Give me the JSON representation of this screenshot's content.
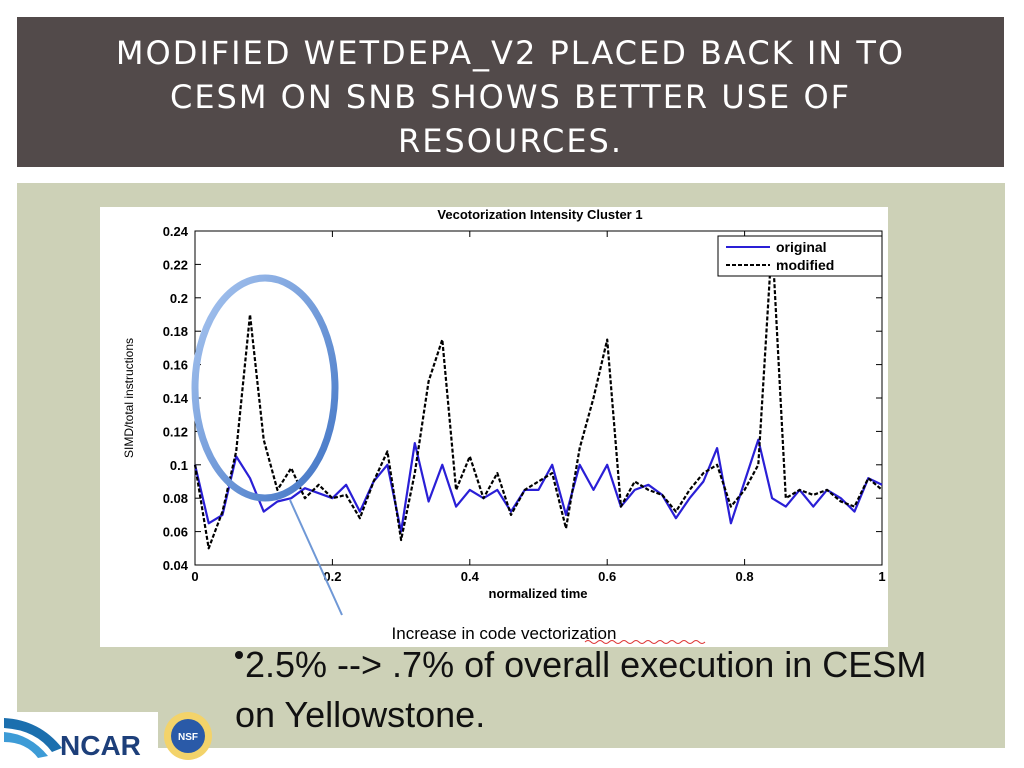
{
  "header": {
    "title": "MODIFIED WETDEPA_V2 PLACED BACK IN TO CESM ON SNB SHOWS BETTER USE OF RESOURCES."
  },
  "chart_data": {
    "type": "line",
    "title": "Vecotorization Intensity Cluster 1",
    "xlabel": "normalized time",
    "ylabel": "SIMD/total instructions",
    "x": [
      0,
      0.02,
      0.04,
      0.06,
      0.08,
      0.1,
      0.12,
      0.14,
      0.16,
      0.18,
      0.2,
      0.22,
      0.24,
      0.26,
      0.28,
      0.3,
      0.32,
      0.34,
      0.36,
      0.38,
      0.4,
      0.42,
      0.44,
      0.46,
      0.48,
      0.5,
      0.52,
      0.54,
      0.56,
      0.58,
      0.6,
      0.62,
      0.64,
      0.66,
      0.68,
      0.7,
      0.72,
      0.74,
      0.76,
      0.78,
      0.8,
      0.82,
      0.84,
      0.86,
      0.88,
      0.9,
      0.92,
      0.94,
      0.96,
      0.98,
      1
    ],
    "series": [
      {
        "name": "original",
        "color": "#2a1fd6",
        "dash": "solid",
        "values": [
          0.1,
          0.065,
          0.07,
          0.105,
          0.092,
          0.072,
          0.078,
          0.08,
          0.086,
          0.083,
          0.08,
          0.088,
          0.072,
          0.09,
          0.1,
          0.06,
          0.113,
          0.078,
          0.1,
          0.075,
          0.085,
          0.08,
          0.085,
          0.072,
          0.085,
          0.085,
          0.1,
          0.07,
          0.1,
          0.085,
          0.1,
          0.075,
          0.085,
          0.088,
          0.082,
          0.068,
          0.08,
          0.09,
          0.11,
          0.065,
          0.09,
          0.115,
          0.08,
          0.075,
          0.085,
          0.075,
          0.085,
          0.08,
          0.072,
          0.092,
          0.088
        ]
      },
      {
        "name": "modified",
        "color": "#000000",
        "dash": "dashed",
        "values": [
          0.1,
          0.05,
          0.072,
          0.108,
          0.19,
          0.115,
          0.085,
          0.098,
          0.08,
          0.088,
          0.08,
          0.082,
          0.068,
          0.09,
          0.108,
          0.055,
          0.095,
          0.15,
          0.175,
          0.085,
          0.105,
          0.08,
          0.095,
          0.07,
          0.085,
          0.09,
          0.095,
          0.062,
          0.11,
          0.14,
          0.175,
          0.075,
          0.09,
          0.085,
          0.082,
          0.072,
          0.085,
          0.095,
          0.1,
          0.075,
          0.085,
          0.1,
          0.235,
          0.08,
          0.085,
          0.082,
          0.085,
          0.078,
          0.075,
          0.092,
          0.085
        ]
      }
    ],
    "xlim": [
      0,
      1
    ],
    "xticks": [
      0,
      0.2,
      0.4,
      0.6,
      0.8,
      1
    ],
    "ylim": [
      0.04,
      0.24
    ],
    "yticks": [
      0.04,
      0.06,
      0.08,
      0.1,
      0.12,
      0.14,
      0.16,
      0.18,
      0.2,
      0.22,
      0.24
    ],
    "grid": false,
    "legend": "upper-right",
    "annotation": "Increase in code vectorization"
  },
  "bullet": "2.5% --> .7% of overall execution in CESM on Yellowstone.",
  "logo": {
    "ncar": "NCAR",
    "nsf": "NSF"
  }
}
